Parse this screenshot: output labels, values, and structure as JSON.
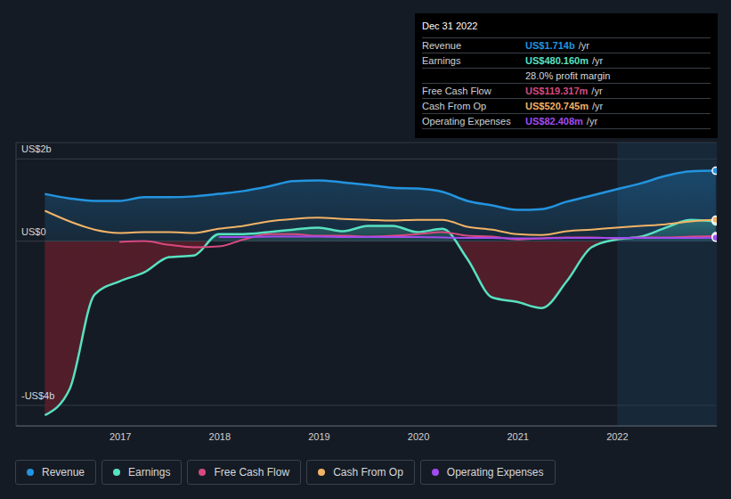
{
  "chart_data": {
    "type": "area",
    "x": [
      2016.24,
      2016.49,
      2016.74,
      2016.99,
      2017.24,
      2017.49,
      2017.74,
      2017.99,
      2018.24,
      2018.49,
      2018.74,
      2018.99,
      2019.24,
      2019.49,
      2019.74,
      2019.99,
      2020.24,
      2020.49,
      2020.74,
      2020.99,
      2021.24,
      2021.49,
      2021.74,
      2021.99,
      2022.24,
      2022.49,
      2022.74,
      2022.99
    ],
    "xlim": [
      2015.95,
      2023.0
    ],
    "xticks": [
      2017,
      2018,
      2019,
      2020,
      2021,
      2022
    ],
    "ylim": [
      -4.5,
      2.4
    ],
    "yticks": [
      {
        "value": -4,
        "label": "-US$4b"
      },
      {
        "value": 0,
        "label": "US$0"
      },
      {
        "value": 2,
        "label": "US$2b"
      }
    ],
    "grid": true,
    "series": [
      {
        "name": "Revenue",
        "color": "#2394df",
        "type": "area",
        "values": [
          1.15,
          1.04,
          0.98,
          0.98,
          1.07,
          1.07,
          1.09,
          1.15,
          1.22,
          1.33,
          1.46,
          1.48,
          1.43,
          1.37,
          1.3,
          1.28,
          1.2,
          0.98,
          0.87,
          0.76,
          0.78,
          0.96,
          1.11,
          1.26,
          1.41,
          1.59,
          1.7,
          1.714
        ]
      },
      {
        "name": "Earnings",
        "color": "#58e1c1",
        "type": "area",
        "values": [
          -4.24,
          -3.6,
          -1.3,
          -0.98,
          -0.76,
          -0.39,
          -0.35,
          0.17,
          0.17,
          0.22,
          0.28,
          0.33,
          0.24,
          0.37,
          0.37,
          0.22,
          0.3,
          -0.43,
          -1.37,
          -1.48,
          -1.63,
          -0.98,
          -0.15,
          0.04,
          0.11,
          0.33,
          0.52,
          0.48
        ]
      },
      {
        "name": "Free Cash Flow",
        "color": "#d64a7f",
        "type": "line",
        "values": [
          null,
          null,
          null,
          -0.02,
          0.0,
          -0.09,
          -0.15,
          -0.13,
          0.04,
          0.17,
          0.17,
          0.13,
          0.13,
          0.11,
          0.13,
          0.17,
          0.22,
          0.13,
          0.11,
          0.04,
          0.07,
          0.09,
          0.09,
          0.07,
          0.09,
          0.09,
          0.11,
          0.119
        ]
      },
      {
        "name": "Cash From Op",
        "color": "#f2b366",
        "type": "line",
        "values": [
          0.74,
          0.48,
          0.28,
          0.2,
          0.22,
          0.22,
          0.2,
          0.3,
          0.37,
          0.48,
          0.54,
          0.57,
          0.54,
          0.52,
          0.5,
          0.52,
          0.52,
          0.35,
          0.28,
          0.17,
          0.15,
          0.24,
          0.28,
          0.33,
          0.37,
          0.41,
          0.48,
          0.521
        ]
      },
      {
        "name": "Operating Expenses",
        "color": "#a24bef",
        "type": "line",
        "values": [
          null,
          null,
          null,
          null,
          null,
          null,
          null,
          0.1,
          0.1,
          0.11,
          0.11,
          0.11,
          0.1,
          0.1,
          0.1,
          0.1,
          0.09,
          0.08,
          0.08,
          0.07,
          0.07,
          0.08,
          0.08,
          0.08,
          0.08,
          0.08,
          0.08,
          0.082
        ]
      }
    ],
    "summary": {
      "date": "Dec 31 2022",
      "profit_margin": "28.0% profit margin",
      "rows": [
        {
          "name": "Revenue",
          "value": "US$1.714b",
          "unit": "/yr"
        },
        {
          "name": "Earnings",
          "value": "US$480.160m",
          "unit": "/yr"
        },
        {
          "name": "Free Cash Flow",
          "value": "US$119.317m",
          "unit": "/yr"
        },
        {
          "name": "Cash From Op",
          "value": "US$520.745m",
          "unit": "/yr"
        },
        {
          "name": "Operating Expenses",
          "value": "US$82.408m",
          "unit": "/yr"
        }
      ]
    }
  }
}
